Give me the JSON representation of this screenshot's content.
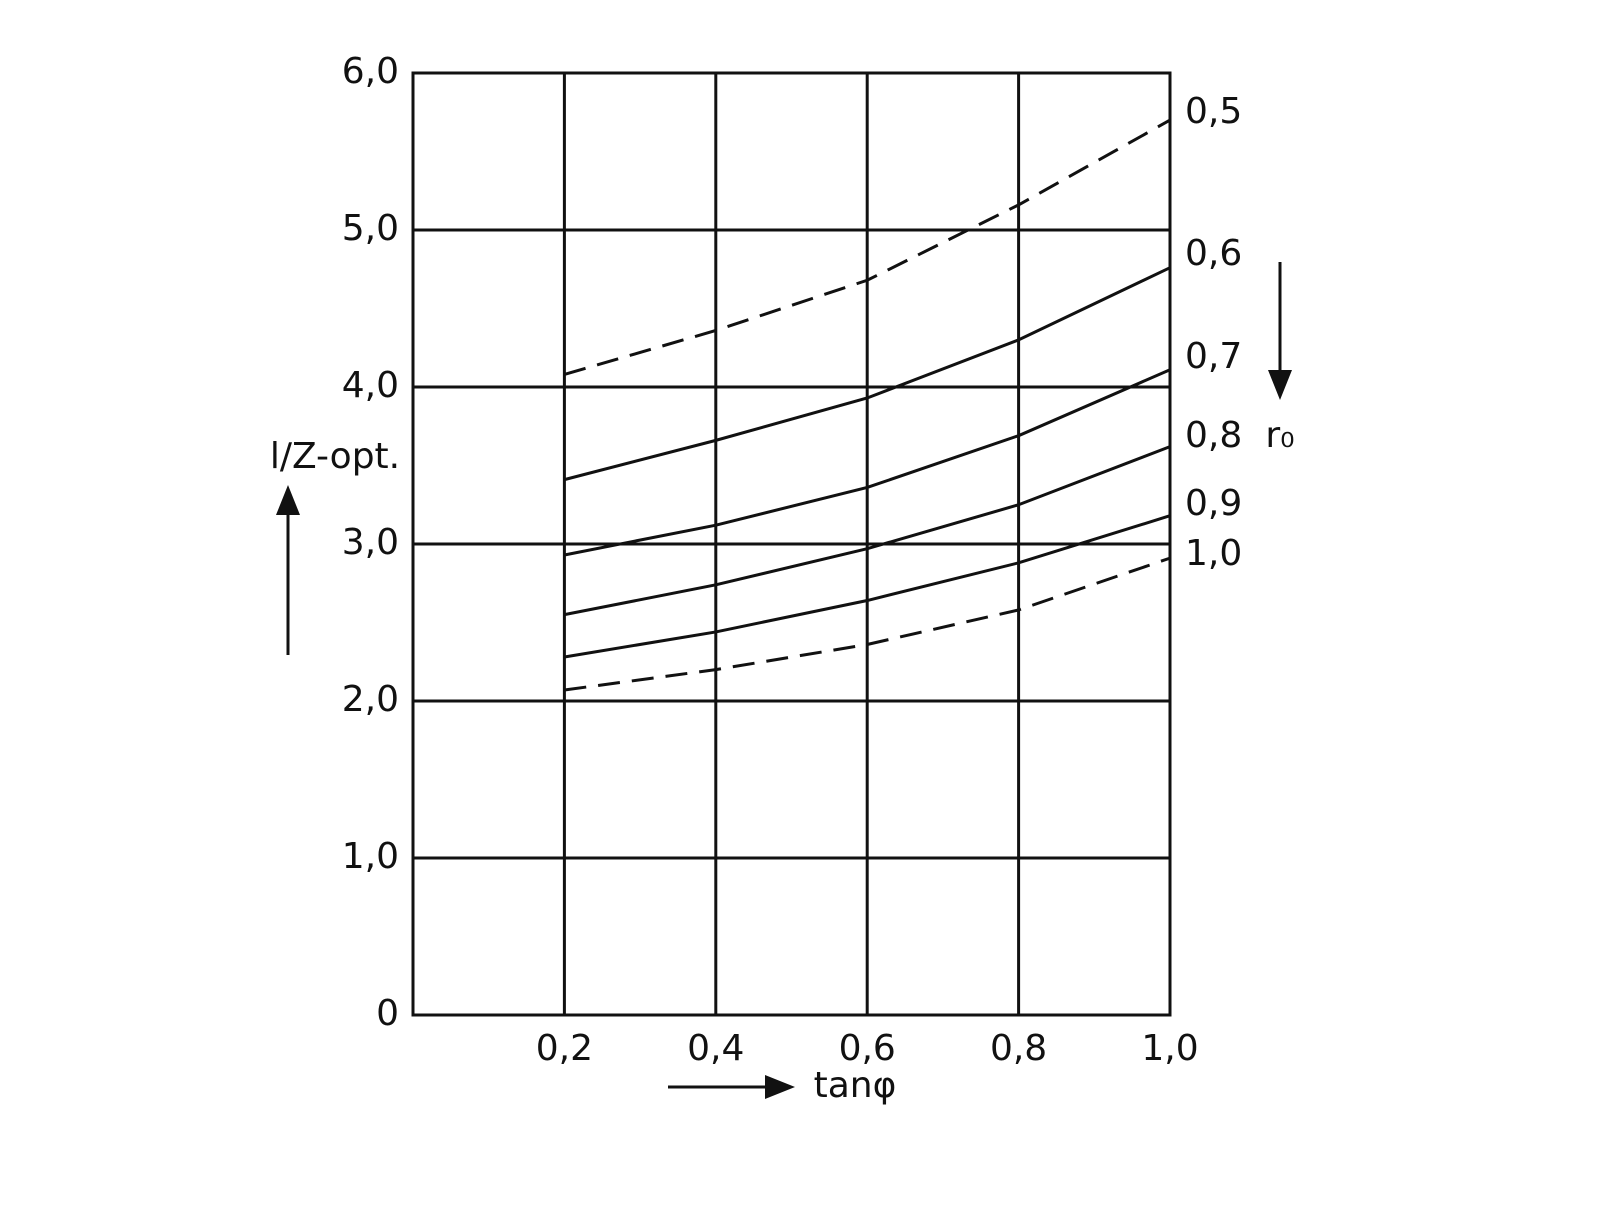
{
  "chart_data": {
    "type": "line",
    "x_label": "tanφ",
    "y_label": "l/Z-opt.",
    "legend_title": "r₀",
    "x": [
      0.2,
      0.4,
      0.6,
      0.8,
      1.0
    ],
    "series": [
      {
        "name": "0,5",
        "color": "#111111",
        "style": "dashed",
        "values": [
          4.08,
          4.36,
          4.68,
          5.16,
          5.7
        ]
      },
      {
        "name": "0,6",
        "color": "#111111",
        "style": "solid",
        "values": [
          3.41,
          3.66,
          3.93,
          4.3,
          4.76
        ]
      },
      {
        "name": "0,7",
        "color": "#111111",
        "style": "solid",
        "values": [
          2.93,
          3.12,
          3.36,
          3.69,
          4.11
        ]
      },
      {
        "name": "0,8",
        "color": "#111111",
        "style": "solid",
        "values": [
          2.55,
          2.74,
          2.97,
          3.25,
          3.62
        ]
      },
      {
        "name": "0,9",
        "color": "#111111",
        "style": "solid",
        "values": [
          2.28,
          2.44,
          2.64,
          2.88,
          3.18
        ]
      },
      {
        "name": "1,0",
        "color": "#111111",
        "style": "dashed",
        "values": [
          2.07,
          2.2,
          2.36,
          2.58,
          2.91
        ]
      }
    ],
    "xlim": [
      0,
      1.0
    ],
    "xticks": [
      {
        "value": 0.2,
        "label": "0,2"
      },
      {
        "value": 0.4,
        "label": "0,4"
      },
      {
        "value": 0.6,
        "label": "0,6"
      },
      {
        "value": 0.8,
        "label": "0,8"
      },
      {
        "value": 1.0,
        "label": "1,0"
      }
    ],
    "ylim": [
      0,
      6
    ],
    "yticks": [
      0,
      {
        "value": 1,
        "label": "1,0"
      },
      {
        "value": 2,
        "label": "2,0"
      },
      {
        "value": 3,
        "label": "3,0"
      },
      {
        "value": 4,
        "label": "4,0"
      },
      {
        "value": 5,
        "label": "5,0"
      },
      {
        "value": 6,
        "label": "6,0"
      }
    ],
    "grid": true
  }
}
